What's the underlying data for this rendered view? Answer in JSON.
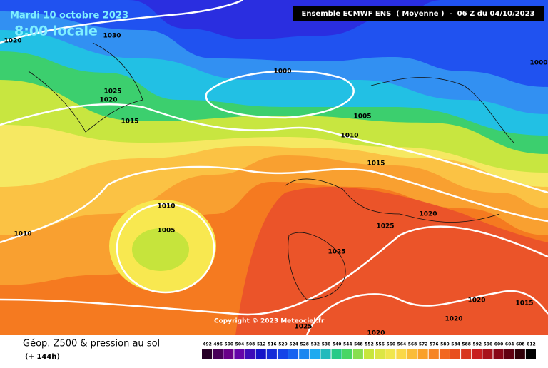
{
  "header": {
    "date": "Mardi 10 octobre 2023",
    "time": "8:00 locale",
    "model": "Ensemble ECMWF ENS  ( Moyenne )  -  06 Z du 04/10/2023"
  },
  "map": {
    "isobar_labels": [
      "1020",
      "1030",
      "1000",
      "1000",
      "1025",
      "1020",
      "1015",
      "1005",
      "1010",
      "1015",
      "1010",
      "1005",
      "1010",
      "1020",
      "1025",
      "1025",
      "1020",
      "1015",
      "1020",
      "1025",
      "1020"
    ],
    "copyright": "Copyright © 2023 Meteociel.fr"
  },
  "footer": {
    "title": "Géop. Z500 & pression au sol",
    "lead": "(+ 144h)",
    "scale": [
      492,
      496,
      500,
      504,
      508,
      512,
      516,
      520,
      524,
      528,
      532,
      536,
      540,
      544,
      548,
      552,
      556,
      560,
      564,
      568,
      572,
      576,
      580,
      584,
      588,
      592,
      596,
      600,
      604,
      608,
      612
    ]
  }
}
